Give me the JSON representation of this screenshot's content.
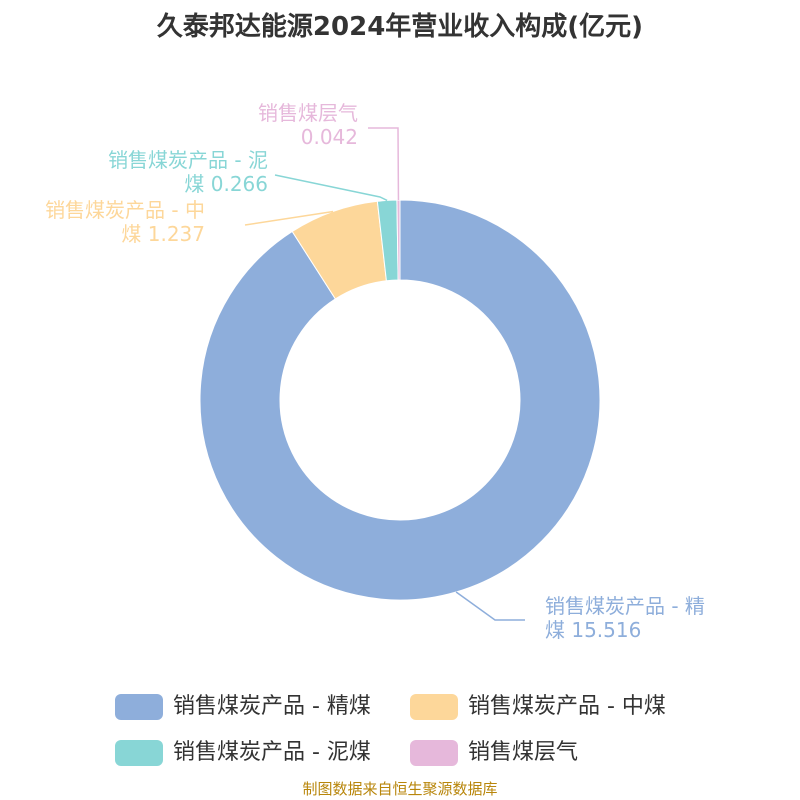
{
  "chart_data": {
    "type": "donut",
    "title": "久泰邦达能源2024年营业收入构成(亿元)",
    "categories": [
      "销售煤炭产品 - 精煤",
      "销售煤炭产品 - 中煤",
      "销售煤炭产品 - 泥煤",
      "销售煤层气"
    ],
    "values": [
      15.516,
      1.237,
      0.266,
      0.042
    ],
    "colors": [
      "#8eaedb",
      "#fdd79a",
      "#88d6d6",
      "#e6b8db"
    ],
    "source": "制图数据来自恒生聚源数据库"
  }
}
